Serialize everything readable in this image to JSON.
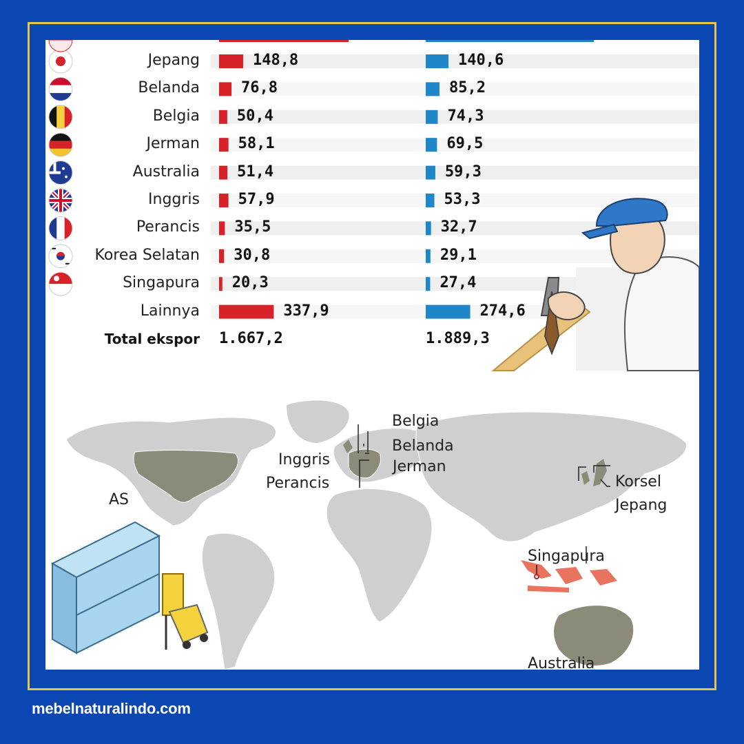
{
  "footer": {
    "website": "mebelnaturalindo.com"
  },
  "colors": {
    "series_1": "#d8222a",
    "series_2": "#1f86c8",
    "frame": "#e8c547",
    "background": "#0b47b3",
    "highlight": "#e8735e"
  },
  "chart_data": {
    "type": "bar",
    "categories": [
      "Jepang",
      "Belanda",
      "Belgia",
      "Jerman",
      "Australia",
      "Inggris",
      "Perancis",
      "Korea Selatan",
      "Singapura",
      "Lainnya"
    ],
    "flag_icons": [
      "japan-flag-icon",
      "netherlands-flag-icon",
      "belgium-flag-icon",
      "germany-flag-icon",
      "australia-flag-icon",
      "uk-flag-icon",
      "france-flag-icon",
      "south-korea-flag-icon",
      "singapore-flag-icon",
      "none"
    ],
    "series": [
      {
        "values": [
          148.8,
          76.8,
          50.4,
          58.1,
          51.4,
          57.9,
          35.5,
          30.8,
          20.3,
          337.9
        ],
        "labels": [
          "148,8",
          "76,8",
          "50,4",
          "58,1",
          "51,4",
          "57,9",
          "35,5",
          "30,8",
          "20,3",
          "337,9"
        ]
      },
      {
        "values": [
          140.6,
          85.2,
          74.3,
          69.5,
          59.3,
          53.3,
          32.7,
          29.1,
          27.4,
          274.6
        ],
        "labels": [
          "140,6",
          "85,2",
          "74,3",
          "69,5",
          "59,3",
          "53,3",
          "32,7",
          "29,1",
          "27,4",
          "274,6"
        ]
      }
    ],
    "total": {
      "label": "Total ekspor",
      "values": [
        "1.667,2",
        "1.889,3"
      ]
    }
  },
  "map": {
    "labels": [
      "Belgia",
      "Belanda",
      "Inggris",
      "Jerman",
      "Perancis",
      "AS",
      "Korsel",
      "Jepang",
      "Singapura",
      "Australia"
    ]
  }
}
